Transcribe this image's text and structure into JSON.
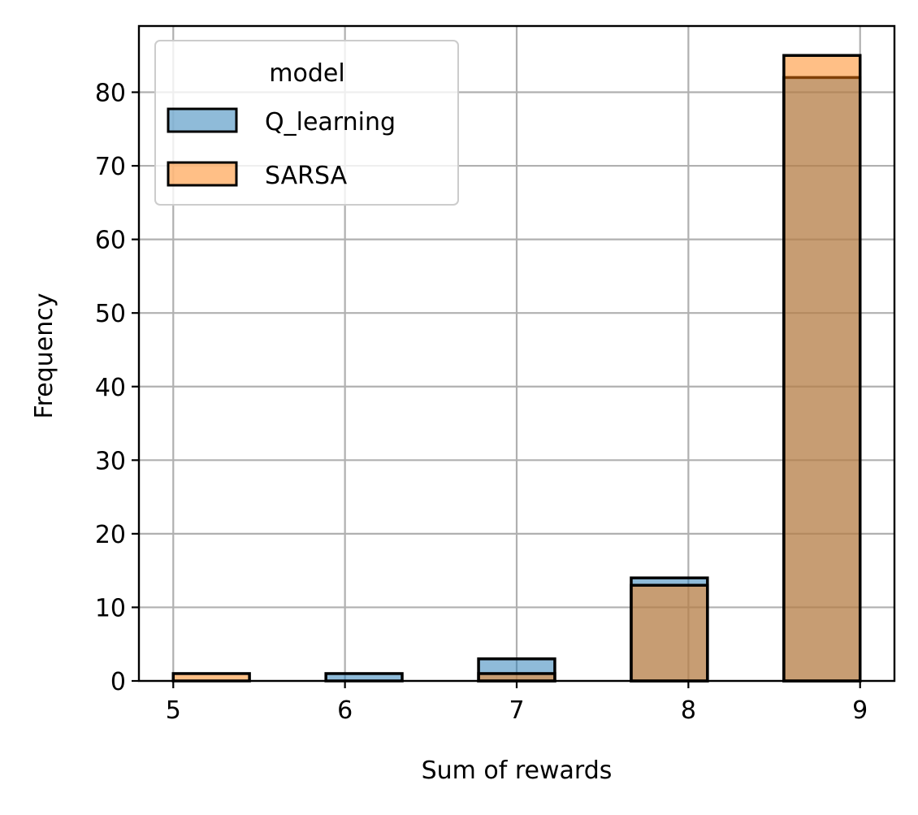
{
  "chart_data": {
    "type": "bar",
    "subtype": "overlapping histogram",
    "xlabel": "Sum of rewards",
    "ylabel": "Frequency",
    "xlim": [
      4.8,
      9.2
    ],
    "ylim": [
      0,
      89
    ],
    "x_ticks": [
      "5",
      "6",
      "7",
      "8",
      "9"
    ],
    "y_ticks": [
      "0",
      "10",
      "20",
      "30",
      "40",
      "50",
      "60",
      "70",
      "80"
    ],
    "bin_width": 0.444,
    "grid": true,
    "legend": {
      "title": "model",
      "placement": "top-left"
    },
    "series": [
      {
        "name": "Q_learning",
        "color": "#1f77b4",
        "bins": [
          {
            "x0": 5.0,
            "count": 0
          },
          {
            "x0": 5.889,
            "count": 1
          },
          {
            "x0": 6.778,
            "count": 3
          },
          {
            "x0": 7.667,
            "count": 14
          },
          {
            "x0": 8.556,
            "count": 82
          }
        ]
      },
      {
        "name": "SARSA",
        "color": "#ff7f0e",
        "bins": [
          {
            "x0": 5.0,
            "count": 1
          },
          {
            "x0": 5.889,
            "count": 0
          },
          {
            "x0": 6.778,
            "count": 1
          },
          {
            "x0": 7.667,
            "count": 13
          },
          {
            "x0": 8.556,
            "count": 85
          }
        ]
      }
    ]
  }
}
